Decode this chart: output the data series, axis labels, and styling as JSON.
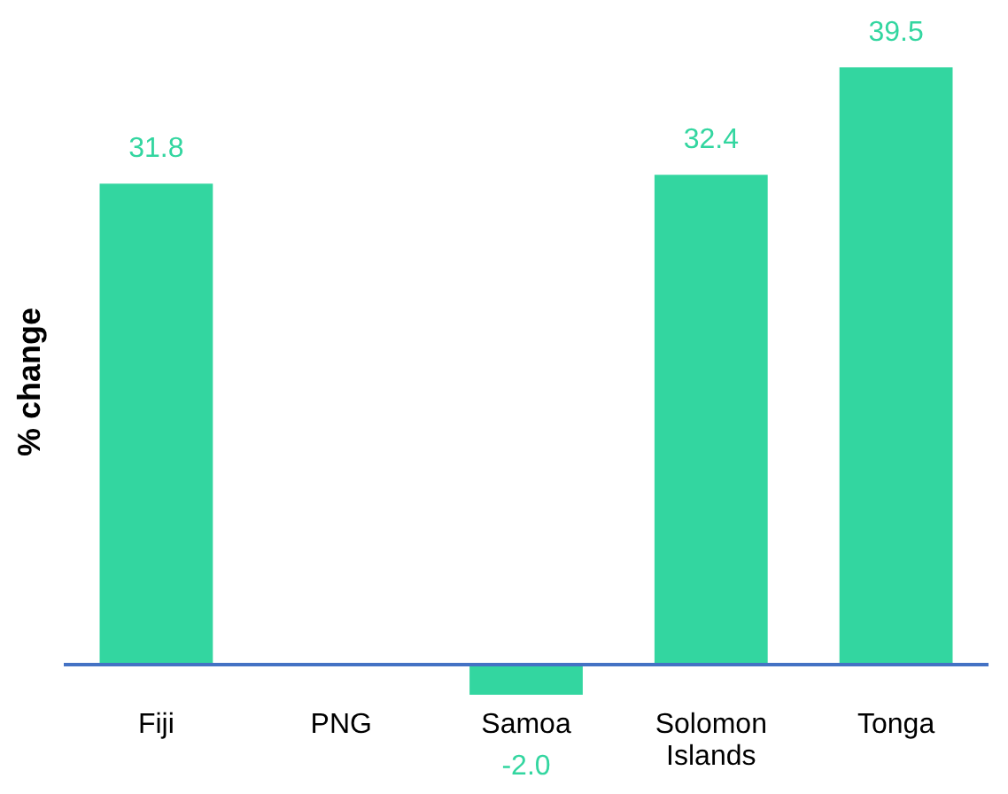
{
  "chart_data": {
    "type": "bar",
    "ylabel": "% change",
    "categories": [
      "Fiji",
      "PNG",
      "Samoa",
      "Solomon Islands",
      "Tonga"
    ],
    "values": [
      31.8,
      null,
      -2.0,
      32.4,
      39.5
    ],
    "color": "#33d6a0",
    "value_labels": [
      "31.8",
      null,
      "-2.0",
      "32.4",
      "39.5"
    ],
    "grid": false
  }
}
